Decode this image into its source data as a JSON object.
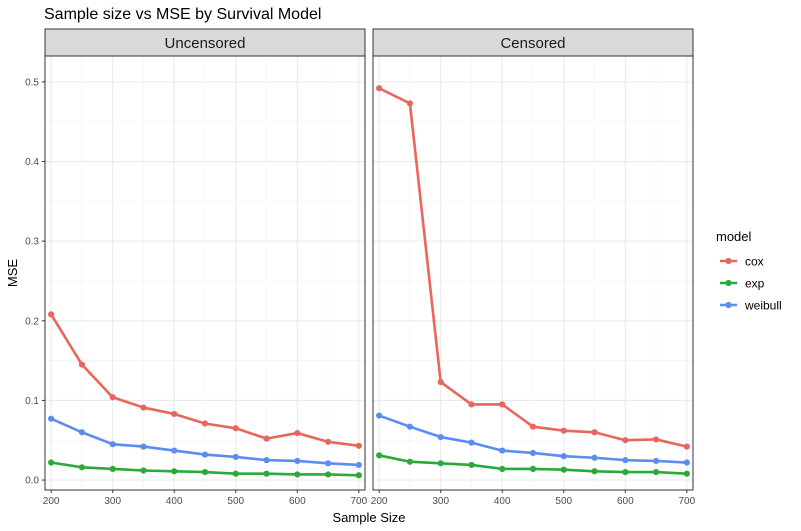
{
  "chart_data": {
    "type": "line",
    "title": "Sample size vs MSE by Survival Model",
    "xlabel": "Sample Size",
    "ylabel": "MSE",
    "xlim": [
      190,
      710
    ],
    "ylim": [
      -0.0125,
      0.5325
    ],
    "x_ticks": [
      200,
      300,
      400,
      500,
      600,
      700
    ],
    "y_ticks": [
      0.0,
      0.1,
      0.2,
      0.3,
      0.4,
      0.5
    ],
    "y_tick_labels": [
      "0.0",
      "0.1",
      "0.2",
      "0.3",
      "0.4",
      "0.5"
    ],
    "grid": true,
    "legend": {
      "title": "model",
      "position": "right"
    },
    "x": [
      200,
      250,
      300,
      350,
      400,
      450,
      500,
      550,
      600,
      650,
      700
    ],
    "panels": [
      {
        "name": "Uncensored",
        "series": [
          {
            "name": "cox",
            "color": "#E7675D",
            "values": [
              0.208,
              0.145,
              0.104,
              0.091,
              0.083,
              0.071,
              0.065,
              0.052,
              0.059,
              0.048,
              0.043
            ]
          },
          {
            "name": "exp",
            "color": "#2BAA3A",
            "values": [
              0.022,
              0.016,
              0.014,
              0.012,
              0.011,
              0.01,
              0.008,
              0.008,
              0.007,
              0.007,
              0.006
            ]
          },
          {
            "name": "weibull",
            "color": "#5B8CF0",
            "values": [
              0.077,
              0.06,
              0.045,
              0.042,
              0.037,
              0.032,
              0.029,
              0.025,
              0.024,
              0.021,
              0.019
            ]
          }
        ]
      },
      {
        "name": "Censored",
        "series": [
          {
            "name": "cox",
            "color": "#E7675D",
            "values": [
              0.492,
              0.473,
              0.123,
              0.095,
              0.095,
              0.067,
              0.062,
              0.06,
              0.05,
              0.051,
              0.042
            ]
          },
          {
            "name": "exp",
            "color": "#2BAA3A",
            "values": [
              0.031,
              0.023,
              0.021,
              0.019,
              0.014,
              0.014,
              0.013,
              0.011,
              0.01,
              0.01,
              0.008
            ]
          },
          {
            "name": "weibull",
            "color": "#5B8CF0",
            "values": [
              0.081,
              0.067,
              0.054,
              0.047,
              0.037,
              0.034,
              0.03,
              0.028,
              0.025,
              0.024,
              0.022
            ]
          }
        ]
      }
    ]
  }
}
